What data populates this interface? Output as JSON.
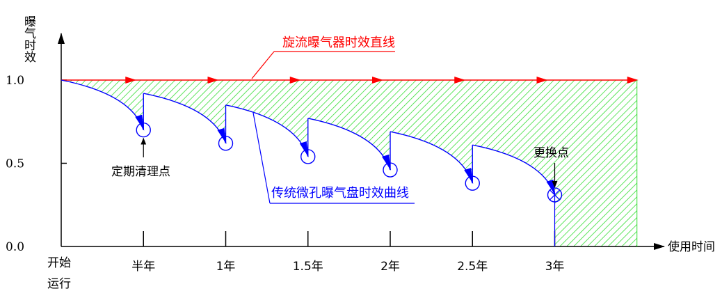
{
  "chart_data": {
    "type": "line",
    "ylabel": "曝气时效",
    "xlabel": "使用时间",
    "ylim": [
      0,
      1.1
    ],
    "y_ticks": [
      "1.0",
      "0.5",
      "0.0"
    ],
    "y_tick_values": [
      1.0,
      0.5,
      0.0
    ],
    "x_origin_label": [
      "开始",
      "运行"
    ],
    "categories": [
      "半年",
      "1年",
      "1.5年",
      "2年",
      "2.5年",
      "3年"
    ],
    "category_values": [
      0.5,
      1.0,
      1.5,
      2.0,
      2.5,
      3.0
    ],
    "xlim": [
      0,
      3.5
    ],
    "series": [
      {
        "name": "旋流曝气器时效直线",
        "color": "#ff0000",
        "x": [
          0,
          3.5
        ],
        "y": [
          1.0,
          1.0
        ]
      },
      {
        "name": "传统微孔曝气盘时效曲线",
        "color": "#0000ff",
        "segments": [
          {
            "x0": 0.0,
            "y0": 1.0,
            "x1": 0.5,
            "y1": 0.7
          },
          {
            "x0": 0.5,
            "y0": 0.92,
            "x1": 1.0,
            "y1": 0.62
          },
          {
            "x0": 1.0,
            "y0": 0.85,
            "x1": 1.5,
            "y1": 0.54
          },
          {
            "x0": 1.5,
            "y0": 0.77,
            "x1": 2.0,
            "y1": 0.46
          },
          {
            "x0": 2.0,
            "y0": 0.69,
            "x1": 2.5,
            "y1": 0.38
          },
          {
            "x0": 2.5,
            "y0": 0.61,
            "x1": 3.0,
            "y1": 0.31
          }
        ]
      }
    ],
    "fill_color": "#33dd33",
    "cleaning_points": [
      {
        "x": 0.5,
        "y": 0.7
      },
      {
        "x": 1.0,
        "y": 0.62
      },
      {
        "x": 1.5,
        "y": 0.54
      },
      {
        "x": 2.0,
        "y": 0.46
      },
      {
        "x": 2.5,
        "y": 0.38
      }
    ],
    "replace_point": {
      "x": 3.0,
      "y": 0.31
    },
    "annotations": {
      "red_line": "旋流曝气器时效直线",
      "blue_curve": "传统微孔曝气盘时效曲线",
      "cleaning": "定期清理点",
      "replace": "更换点"
    },
    "grid": false
  }
}
